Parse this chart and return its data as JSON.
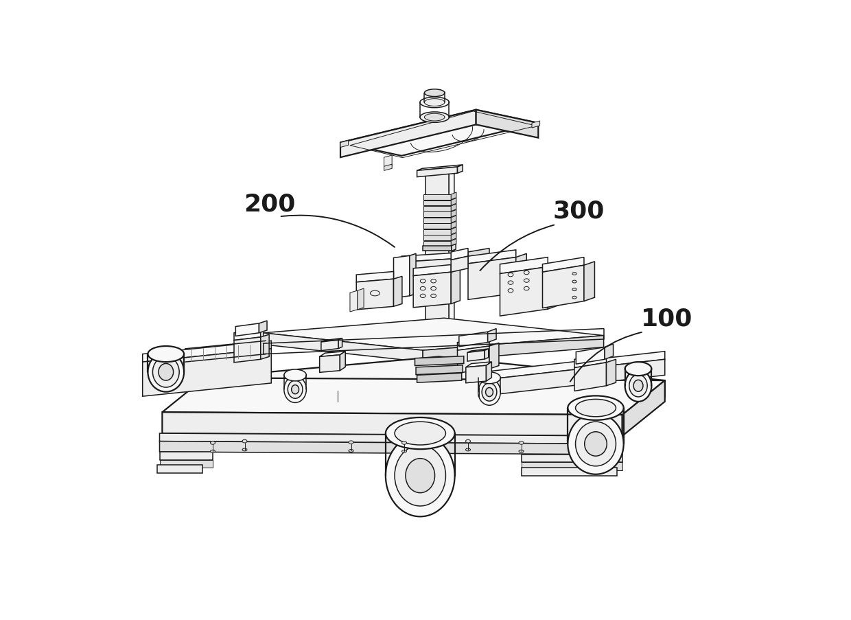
{
  "background_color": "#ffffff",
  "label_200": "200",
  "label_300": "300",
  "label_100": "100",
  "label_fontsize": 26,
  "line_color": "#1a1a1a",
  "figure_width": 12.4,
  "figure_height": 9.04,
  "dpi": 100,
  "lw_thick": 1.6,
  "lw_main": 1.1,
  "lw_thin": 0.7,
  "fc_light": "#f8f8f8",
  "fc_mid": "#eeeeee",
  "fc_dark": "#e0e0e0",
  "fc_darkest": "#d0d0d0"
}
